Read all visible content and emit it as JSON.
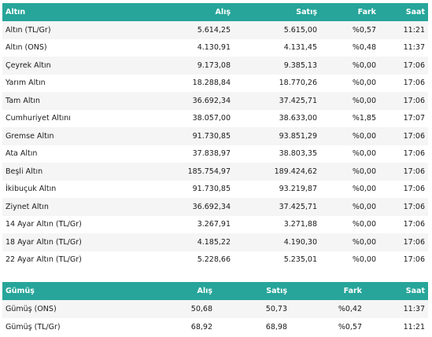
{
  "gold": {
    "headers": {
      "name": "Altın",
      "buy": "Alış",
      "sell": "Satış",
      "change": "Fark",
      "time": "Saat"
    },
    "rows": [
      {
        "name": "Altın (TL/Gr)",
        "buy": "5.614,25",
        "sell": "5.615,00",
        "change": "%0,57",
        "time": "11:21"
      },
      {
        "name": "Altın (ONS)",
        "buy": "4.130,91",
        "sell": "4.131,45",
        "change": "%0,48",
        "time": "11:37"
      },
      {
        "name": "Çeyrek Altın",
        "buy": "9.173,08",
        "sell": "9.385,13",
        "change": "%0,00",
        "time": "17:06"
      },
      {
        "name": "Yarım Altın",
        "buy": "18.288,84",
        "sell": "18.770,26",
        "change": "%0,00",
        "time": "17:06"
      },
      {
        "name": "Tam Altın",
        "buy": "36.692,34",
        "sell": "37.425,71",
        "change": "%0,00",
        "time": "17:06"
      },
      {
        "name": "Cumhuriyet Altını",
        "buy": "38.057,00",
        "sell": "38.633,00",
        "change": "%1,85",
        "time": "17:07"
      },
      {
        "name": "Gremse Altın",
        "buy": "91.730,85",
        "sell": "93.851,29",
        "change": "%0,00",
        "time": "17:06"
      },
      {
        "name": "Ata Altın",
        "buy": "37.838,97",
        "sell": "38.803,35",
        "change": "%0,00",
        "time": "17:06"
      },
      {
        "name": "Beşli Altın",
        "buy": "185.754,97",
        "sell": "189.424,62",
        "change": "%0,00",
        "time": "17:06"
      },
      {
        "name": "İkibuçuk Altın",
        "buy": "91.730,85",
        "sell": "93.219,87",
        "change": "%0,00",
        "time": "17:06"
      },
      {
        "name": "Ziynet Altın",
        "buy": "36.692,34",
        "sell": "37.425,71",
        "change": "%0,00",
        "time": "17:06"
      },
      {
        "name": "14 Ayar Altın (TL/Gr)",
        "buy": "3.267,91",
        "sell": "3.271,88",
        "change": "%0,00",
        "time": "17:06"
      },
      {
        "name": "18 Ayar Altın (TL/Gr)",
        "buy": "4.185,22",
        "sell": "4.190,30",
        "change": "%0,00",
        "time": "17:06"
      },
      {
        "name": "22 Ayar Altın (TL/Gr)",
        "buy": "5.228,66",
        "sell": "5.235,01",
        "change": "%0,00",
        "time": "17:06"
      }
    ]
  },
  "silver": {
    "headers": {
      "name": "Gümüş",
      "buy": "Alış",
      "sell": "Satış",
      "change": "Fark",
      "time": "Saat"
    },
    "rows": [
      {
        "name": "Gümüş (ONS)",
        "buy": "50,68",
        "sell": "50,73",
        "change": "%0,42",
        "time": "11:37"
      },
      {
        "name": "Gümüş (TL/Gr)",
        "buy": "68,92",
        "sell": "68,98",
        "change": "%0,57",
        "time": "11:21"
      }
    ]
  },
  "colors": {
    "header_bg": "#27a59a",
    "header_text": "#ffffff",
    "row_alt": "#f5f5f5"
  }
}
